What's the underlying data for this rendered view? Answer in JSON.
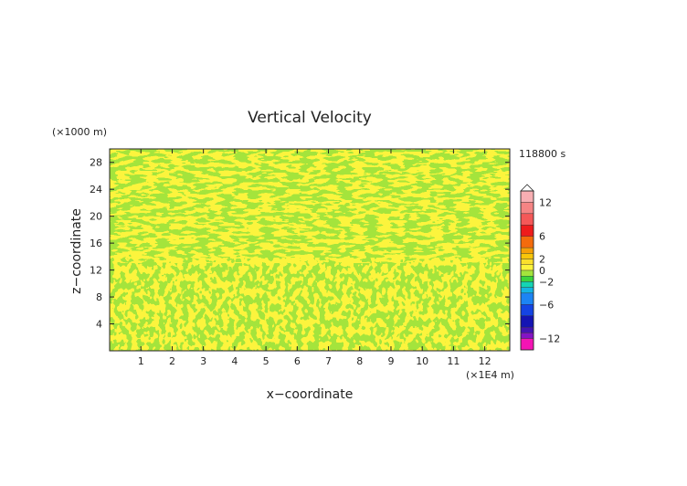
{
  "chart_data": {
    "type": "heatmap",
    "title": "Vertical Velocity",
    "xlabel": "x−coordinate",
    "ylabel": "z−coordinate",
    "x_unit": "(×1E4 m)",
    "y_unit": "(×1000 m)",
    "time_label": "118800 s",
    "xlim": [
      0,
      12.8
    ],
    "ylim": [
      0,
      30
    ],
    "x_ticks": [
      1,
      2,
      3,
      4,
      5,
      6,
      7,
      8,
      9,
      10,
      11,
      12
    ],
    "x_tick_labels": [
      "1",
      "2",
      "3",
      "4",
      "5",
      "6",
      "7",
      "8",
      "9",
      "10",
      "11",
      "12"
    ],
    "y_ticks": [
      4,
      8,
      12,
      16,
      20,
      24,
      28
    ],
    "y_tick_labels": [
      "4",
      "8",
      "12",
      "16",
      "20",
      "24",
      "28"
    ],
    "colorbar": {
      "range": [
        -14,
        14
      ],
      "tick_values": [
        12,
        6,
        2,
        0,
        -2,
        -6,
        -12
      ],
      "tick_labels": [
        "12",
        "6",
        "2",
        "0",
        "−2",
        "−6",
        "−12"
      ],
      "bands": [
        {
          "from": 12,
          "to": 14,
          "color": "#f7aeb2"
        },
        {
          "from": 10,
          "to": 12,
          "color": "#f58484"
        },
        {
          "from": 8,
          "to": 10,
          "color": "#f45858"
        },
        {
          "from": 6,
          "to": 8,
          "color": "#ee1c1c"
        },
        {
          "from": 4,
          "to": 6,
          "color": "#f46b0c"
        },
        {
          "from": 3,
          "to": 4,
          "color": "#f6a008"
        },
        {
          "from": 2,
          "to": 3,
          "color": "#f8c60a"
        },
        {
          "from": 1,
          "to": 2,
          "color": "#fbe02c"
        },
        {
          "from": 0,
          "to": 1,
          "color": "#fcf43c"
        },
        {
          "from": -1,
          "to": 0,
          "color": "#a4e43c"
        },
        {
          "from": -2,
          "to": -1,
          "color": "#3cd43c"
        },
        {
          "from": -3,
          "to": -2,
          "color": "#14d4b4"
        },
        {
          "from": -4,
          "to": -3,
          "color": "#14b4e4"
        },
        {
          "from": -6,
          "to": -4,
          "color": "#1c84f4"
        },
        {
          "from": -8,
          "to": -6,
          "color": "#1444e4"
        },
        {
          "from": -10,
          "to": -8,
          "color": "#1414b4"
        },
        {
          "from": -11,
          "to": -10,
          "color": "#4414b4"
        },
        {
          "from": -12,
          "to": -11,
          "color": "#8414c4"
        },
        {
          "from": -14,
          "to": -12,
          "color": "#f414b4"
        }
      ]
    },
    "field_colors": {
      "positive": "#fcf43c",
      "negative": "#a4e43c"
    }
  }
}
